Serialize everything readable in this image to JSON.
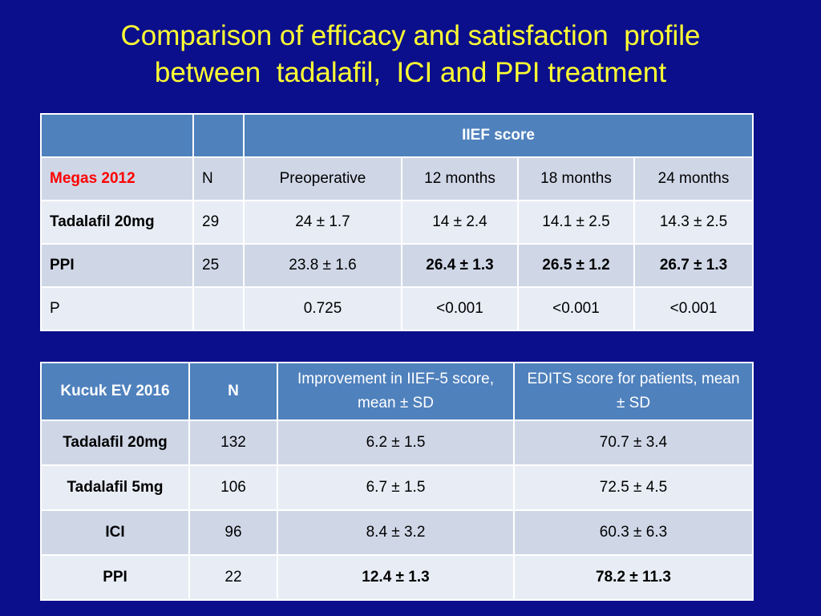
{
  "title": {
    "line1": "Comparison of efficacy and satisfaction  profile",
    "line2": "between  tadalafil,  ICI and PPI treatment"
  },
  "table1": {
    "span_header": "IIEF score",
    "header": [
      "Megas 2012",
      "N",
      "Preoperative",
      "12 months",
      "18 months",
      "24 months"
    ],
    "rows": [
      [
        "Tadalafil 20mg",
        "29",
        "24 ± 1.7",
        "14 ± 2.4",
        "14.1 ± 2.5",
        "14.3 ± 2.5"
      ],
      [
        "PPI",
        "25",
        "23.8 ± 1.6",
        "26.4 ± 1.3",
        "26.5 ± 1.2",
        "26.7 ± 1.3"
      ],
      [
        "P",
        "",
        "0.725",
        "<0.001",
        "<0.001",
        "<0.001"
      ]
    ]
  },
  "table2": {
    "header": [
      "Kucuk EV 2016",
      "N",
      "Improvement in IIEF-5 score, mean ± SD",
      "EDITS score for patients, mean ± SD"
    ],
    "rows": [
      [
        "Tadalafil 20mg",
        "132",
        "6.2 ± 1.5",
        "70.7 ± 3.4"
      ],
      [
        "Tadalafil 5mg",
        "106",
        "6.7 ± 1.5",
        "72.5 ± 4.5"
      ],
      [
        "ICI",
        "96",
        "8.4 ± 3.2",
        "60.3 ± 6.3"
      ],
      [
        "PPI",
        "22",
        "12.4 ± 1.3",
        "78.2 ± 11.3"
      ]
    ]
  }
}
